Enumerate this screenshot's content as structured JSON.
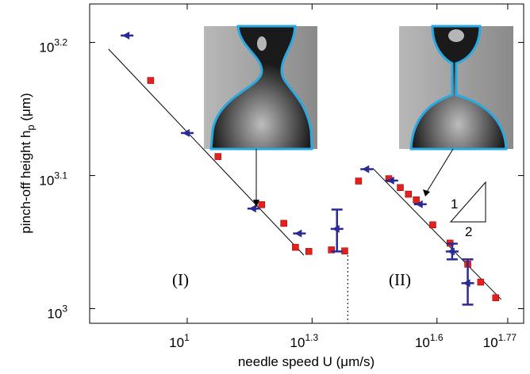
{
  "chart_data": {
    "type": "scatter",
    "xlabel": "needle speed U (μm/s)",
    "ylabel": [
      "pinch-off height h",
      "p",
      " (μm)"
    ],
    "xscale": "log",
    "yscale": "log",
    "xlim": [
      5.83,
      64.3
    ],
    "ylim": [
      975,
      1694
    ],
    "xticks": [
      {
        "value": 10,
        "label": "10",
        "exponent": "1"
      },
      {
        "value": 19.95,
        "label": "10",
        "exponent": "1.3"
      },
      {
        "value": 39.81,
        "label": "10",
        "exponent": "1.6"
      },
      {
        "value": 58.88,
        "label": "10",
        "exponent": "1.77"
      }
    ],
    "yticks": [
      {
        "value": 1000,
        "label": "10",
        "exponent": "3"
      },
      {
        "value": 1258.9,
        "label": "10",
        "exponent": "3.1"
      },
      {
        "value": 1584.9,
        "label": "10",
        "exponent": "3.2"
      }
    ],
    "series": [
      {
        "marker": "square",
        "color": "#e3201b",
        "x": [
          8.17,
          11.86,
          15.1,
          17.06,
          18.2,
          19.6,
          22.2,
          23.9,
          25.8,
          30.5,
          32.5,
          34.0,
          35.5,
          38.9,
          42.8,
          47.2,
          50.7,
          55.1
        ],
        "y": [
          1484,
          1301,
          1197,
          1159,
          1112,
          1104,
          1107,
          1105,
          1247,
          1252,
          1233,
          1219,
          1207,
          1156,
          1120,
          1080,
          1047,
          1019
        ]
      },
      {
        "marker": "triangle-left",
        "color": "#2a2a96",
        "x": [
          7.17,
          10,
          14.45,
          18.6,
          22.9,
          27.0,
          31.0,
          36.3,
          43.3,
          47.2
        ],
        "y": [
          1604,
          1355,
          1189,
          1139,
          1148,
          1273,
          1248,
          1198,
          1104,
          1045
        ],
        "y_low": [
          null,
          null,
          null,
          null,
          1104,
          null,
          null,
          null,
          1089,
          1007
        ],
        "y_high": [
          null,
          null,
          null,
          null,
          1187,
          null,
          null,
          null,
          1119,
          1089
        ]
      }
    ],
    "lines": [
      {
        "x": [
          6.47,
          19.06
        ],
        "y": [
          1567,
          1097
        ],
        "color": "#000000",
        "dash": false
      },
      {
        "x": [
          27.9,
          56.8
        ],
        "y": [
          1275,
          1016
        ],
        "color": "#000000",
        "dash": false
      },
      {
        "x": [
          24.3,
          24.3
        ],
        "y": [
          1097,
          975
        ],
        "color": "#000000",
        "dash": true
      }
    ],
    "annotations": [
      "(I)",
      "(II)",
      "1",
      "2"
    ]
  }
}
